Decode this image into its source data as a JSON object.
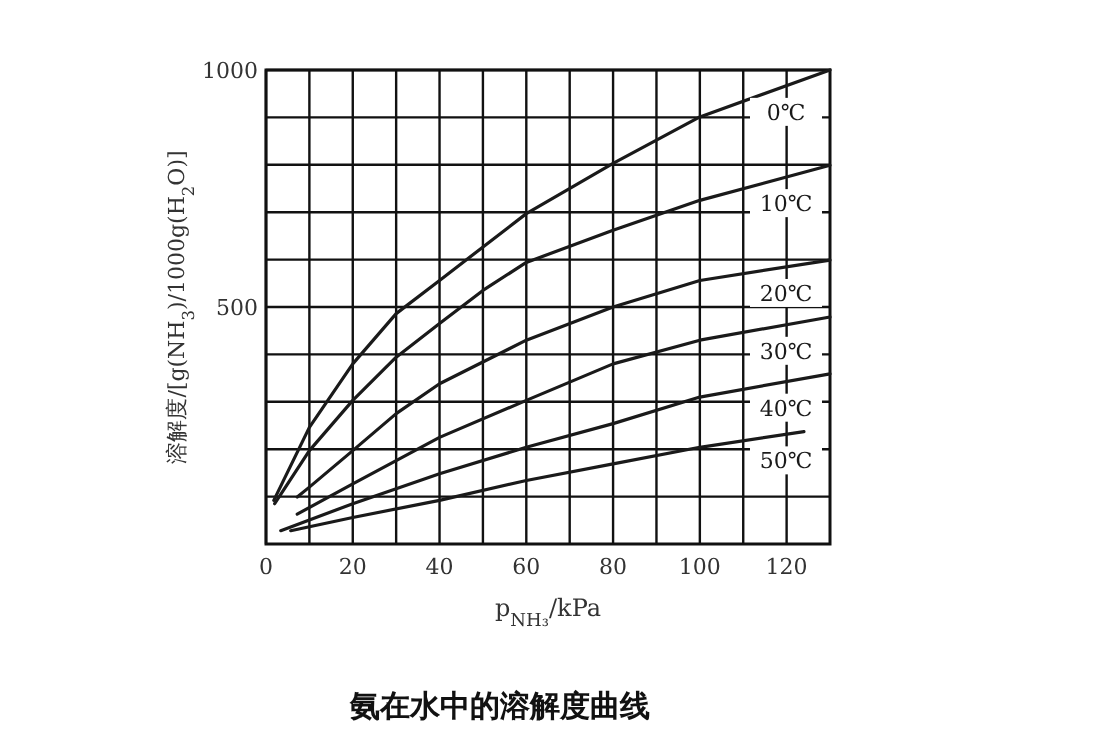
{
  "chart_data": {
    "type": "line",
    "title": "氨在水中的溶解度曲线",
    "xlabel": "p$_{NH₃}$/kPa",
    "ylabel": "溶解度/[g(NH$_{3}$)/1000g(H$_{2}$O)]",
    "xlim": [
      0,
      130
    ],
    "ylim": [
      0,
      1000
    ],
    "xticks": [
      0,
      {
        "value": 10,
        "label": null
      },
      20,
      {
        "value": 30,
        "label": null
      },
      40,
      {
        "value": 50,
        "label": null
      },
      60,
      {
        "value": 70,
        "label": null
      },
      80,
      {
        "value": 90,
        "label": null
      },
      100,
      {
        "value": 110,
        "label": null
      },
      120
    ],
    "yticks": [
      {
        "value": 100,
        "label": null
      },
      {
        "value": 200,
        "label": null
      },
      {
        "value": 300,
        "label": null
      },
      {
        "value": 400,
        "label": null
      },
      500,
      {
        "value": 600,
        "label": null
      },
      {
        "value": 700,
        "label": null
      },
      {
        "value": 800,
        "label": null
      },
      {
        "value": 900,
        "label": null
      },
      1000
    ],
    "grid": true,
    "marker": "none",
    "line_style": "solid",
    "series": [
      {
        "name": "0℃",
        "color": "#1a1a1a",
        "x": [
          1.8,
          10,
          20,
          30,
          40,
          60,
          80,
          100,
          130
        ],
        "values": [
          92,
          246,
          380,
          486,
          556,
          697,
          803,
          901,
          1000
        ]
      },
      {
        "name": "10℃",
        "color": "#1a1a1a",
        "x": [
          2,
          10,
          20,
          30,
          40,
          50,
          60,
          80,
          100,
          130
        ],
        "values": [
          85,
          197,
          303,
          394,
          465,
          535,
          594,
          662,
          725,
          799
        ]
      },
      {
        "name": "20℃",
        "color": "#1a1a1a",
        "x": [
          7.2,
          10,
          20,
          30,
          40,
          60,
          80,
          100,
          130
        ],
        "values": [
          99,
          120,
          197,
          275,
          338,
          430,
          500,
          556,
          599
        ]
      },
      {
        "name": "30℃",
        "color": "#1a1a1a",
        "x": [
          7.2,
          20,
          40,
          60,
          80,
          100,
          130
        ],
        "values": [
          63,
          127,
          225,
          303,
          380,
          430,
          479
        ]
      },
      {
        "name": "40℃",
        "color": "#1a1a1a",
        "x": [
          3.4,
          20,
          40,
          60,
          80,
          100,
          130
        ],
        "values": [
          28,
          85,
          148,
          204,
          254,
          310,
          359
        ]
      },
      {
        "name": "50℃",
        "color": "#1a1a1a",
        "x": [
          5.7,
          20,
          40,
          60,
          80,
          100,
          124
        ],
        "values": [
          28,
          56,
          92,
          134,
          169,
          204,
          237
        ]
      }
    ]
  }
}
